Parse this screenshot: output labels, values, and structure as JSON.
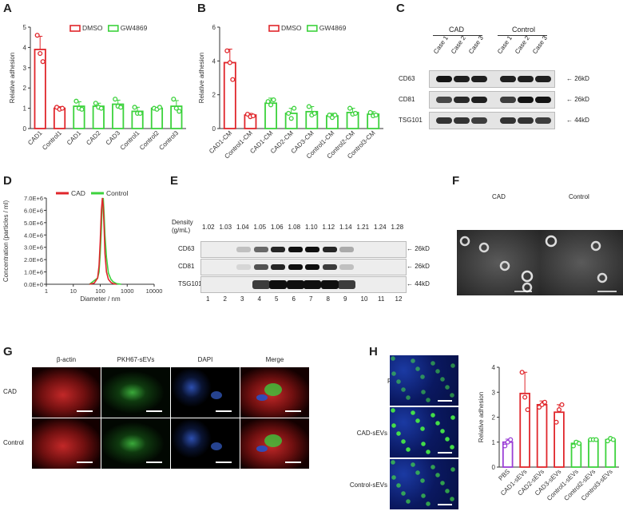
{
  "letters": {
    "A": "A",
    "B": "B",
    "C": "C",
    "D": "D",
    "E": "E",
    "F": "F",
    "G": "G",
    "H": "H"
  },
  "colors": {
    "dmso": "#e0262b",
    "gw4869": "#3cd23c",
    "cad": "#e0262b",
    "control": "#3cd23c",
    "pbs": "#9a3fd6"
  },
  "panelA": {
    "type": "bar",
    "ylabel": "Relative adhesion",
    "ylim": [
      0,
      5
    ],
    "yticks": [
      "0",
      "1",
      "2",
      "3",
      "4",
      "5"
    ],
    "legend": [
      "DMSO",
      "GW4869"
    ],
    "categories": [
      "CAD1",
      "Control1",
      "CAD1",
      "CAD2",
      "CAD3",
      "Control1",
      "Control2",
      "Control3"
    ],
    "series": [
      {
        "name": "DMSO",
        "values": [
          3.9,
          1.0,
          null,
          null,
          null,
          null,
          null,
          null
        ],
        "errors": [
          0.65,
          0.08,
          null,
          null,
          null,
          null,
          null,
          null
        ],
        "points": [
          [
            4.6,
            3.7,
            3.3
          ],
          [
            1.05,
            0.95,
            1.0
          ]
        ]
      },
      {
        "name": "GW4869",
        "values": [
          null,
          null,
          1.1,
          1.1,
          1.2,
          0.85,
          1.0,
          1.1
        ],
        "errors": [
          null,
          null,
          0.22,
          0.15,
          0.2,
          0.2,
          0.05,
          0.28
        ],
        "points": [
          [
            1.35,
            1.0,
            0.95
          ],
          [
            1.25,
            1.05,
            1.0
          ],
          [
            1.45,
            1.1,
            1.05
          ],
          [
            1.05,
            0.75,
            0.75
          ],
          [
            1.0,
            0.95,
            1.05
          ],
          [
            1.45,
            1.0,
            0.85
          ]
        ]
      }
    ]
  },
  "panelB": {
    "type": "bar",
    "ylabel": "Relative adhesion",
    "ylim": [
      0,
      6
    ],
    "yticks": [
      "0",
      "2",
      "4",
      "6"
    ],
    "legend": [
      "DMSO",
      "GW4869"
    ],
    "categories": [
      "CAD1-CM",
      "Control1-CM",
      "CAD1-CM",
      "CAD2-CM",
      "CAD3-CM",
      "Control1-CM",
      "Control2-CM",
      "Control3-CM"
    ],
    "series": [
      {
        "name": "DMSO",
        "values": [
          3.9,
          0.8,
          null,
          null,
          null,
          null,
          null,
          null
        ],
        "errors": [
          0.8,
          0.1,
          null,
          null,
          null,
          null,
          null,
          null
        ],
        "points": [
          [
            4.6,
            3.9,
            2.9
          ],
          [
            0.85,
            0.7,
            0.75
          ]
        ]
      },
      {
        "name": "GW4869",
        "values": [
          null,
          null,
          1.5,
          0.9,
          1.0,
          0.75,
          0.95,
          0.85
        ],
        "errors": [
          null,
          null,
          0.3,
          0.3,
          0.3,
          0.15,
          0.25,
          0.15
        ],
        "points": [
          [
            1.6,
            1.4,
            1.7
          ],
          [
            0.9,
            0.6,
            1.2
          ],
          [
            1.3,
            0.8,
            0.9
          ],
          [
            0.8,
            0.65,
            0.8
          ],
          [
            1.2,
            0.85,
            0.9
          ],
          [
            0.95,
            0.75,
            0.8
          ]
        ]
      }
    ]
  },
  "panelC": {
    "group_cad": "CAD",
    "group_control": "Control",
    "lanes": [
      "Case 1",
      "Case 2",
      "Case 3",
      "Case 1",
      "Case 2",
      "Case 3"
    ],
    "rows": [
      {
        "name": "CD63",
        "size": "26kD"
      },
      {
        "name": "CD81",
        "size": "26kD"
      },
      {
        "name": "TSG101",
        "size": "44kD"
      }
    ]
  },
  "panelD": {
    "type": "line",
    "xlabel": "Diameter / nm",
    "ylabel": "Concentration (particles / ml)",
    "yticks": [
      "0.0E+0",
      "1.0E+6",
      "2.0E+6",
      "3.0E+6",
      "4.0E+6",
      "5.0E+6",
      "6.0E+6",
      "7.0E+6"
    ],
    "xticks": [
      "1",
      "10",
      "100",
      "1000",
      "10000"
    ],
    "xscale": "log",
    "legend": [
      "CAD",
      "Control"
    ],
    "series": [
      {
        "name": "CAD",
        "x": [
          40,
          60,
          80,
          90,
          100,
          110,
          120,
          130,
          140,
          150,
          170,
          200,
          250,
          300,
          400
        ],
        "y": [
          0.0,
          0.1,
          0.5,
          1.5,
          3.5,
          6.0,
          7.0,
          6.3,
          4.5,
          2.5,
          1.0,
          0.4,
          0.15,
          0.05,
          0.0
        ]
      },
      {
        "name": "Control",
        "x": [
          40,
          60,
          80,
          90,
          100,
          110,
          120,
          130,
          140,
          150,
          170,
          200,
          250,
          300,
          400,
          600
        ],
        "y": [
          0.0,
          0.3,
          0.5,
          1.0,
          2.5,
          4.5,
          6.8,
          7.0,
          5.6,
          4.0,
          2.2,
          0.9,
          0.4,
          0.2,
          0.05,
          0.0
        ]
      }
    ]
  },
  "panelE": {
    "density_label": "Density",
    "density_unit": "(g/mL)",
    "densities": [
      "1.02",
      "1.03",
      "1.04",
      "1.05",
      "1.06",
      "1.08",
      "1.10",
      "1.12",
      "1.14",
      "1.21",
      "1.24",
      "1.28"
    ],
    "fractions": [
      "1",
      "2",
      "3",
      "4",
      "5",
      "6",
      "7",
      "8",
      "9",
      "10",
      "11",
      "12"
    ],
    "rows": [
      {
        "name": "CD63",
        "size": "26kD"
      },
      {
        "name": "CD81",
        "size": "26kD"
      },
      {
        "name": "TSG101",
        "size": "44kD"
      }
    ]
  },
  "panelF": {
    "labels": [
      "CAD",
      "Control"
    ]
  },
  "panelG": {
    "columns": [
      "β-actin",
      "PKH67-sEVs",
      "DAPI",
      "Merge"
    ],
    "rows": [
      "CAD",
      "Control"
    ]
  },
  "panelH": {
    "image_rows": [
      "PBS",
      "CAD-sEVs",
      "Control-sEVs"
    ],
    "chart": {
      "type": "bar",
      "ylabel": "Relative adhesion",
      "ylim": [
        0,
        4
      ],
      "yticks": [
        "0",
        "1",
        "2",
        "3",
        "4"
      ],
      "categories": [
        "PBS",
        "CAD1-sEVs",
        "CAD2-sEVs",
        "CAD3-sEVs",
        "Control1-sEVs",
        "Control2-sEVs",
        "Control3-sEVs"
      ],
      "values": [
        1.0,
        2.95,
        2.5,
        2.2,
        0.95,
        1.1,
        1.1
      ],
      "errors": [
        0.12,
        0.85,
        0.15,
        0.3,
        0.1,
        0.05,
        0.05
      ],
      "points": [
        [
          0.85,
          1.0,
          1.1
        ],
        [
          3.8,
          2.8,
          2.3
        ],
        [
          2.4,
          2.5,
          2.6
        ],
        [
          1.8,
          2.3,
          2.5
        ],
        [
          0.85,
          1.0,
          0.95
        ],
        [
          1.1,
          1.1,
          1.1
        ],
        [
          1.05,
          1.15,
          1.1
        ]
      ],
      "bar_colors": [
        "pbs",
        "cad",
        "cad",
        "cad",
        "control",
        "control",
        "control"
      ]
    }
  }
}
